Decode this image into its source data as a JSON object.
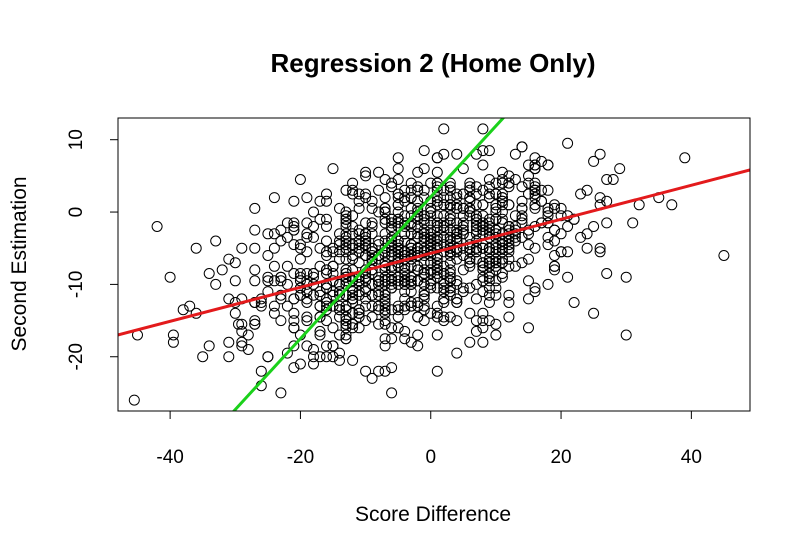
{
  "chart_data": {
    "type": "scatter",
    "title": "Regression 2 (Home Only)",
    "xlabel": "Score Difference",
    "ylabel": "Second Estimation",
    "xlim": [
      -48,
      49
    ],
    "ylim": [
      -27.5,
      13
    ],
    "xticks": [
      -40,
      -20,
      0,
      20,
      40
    ],
    "yticks": [
      -20,
      -10,
      0,
      10
    ],
    "grid": false,
    "lines": [
      {
        "color": "#e31a1c",
        "intercept": -5.7,
        "slope": 0.235
      },
      {
        "color": "#1bd11b",
        "intercept": 2.1,
        "slope": 0.98
      }
    ],
    "points_summary": {
      "count": 1100,
      "x_mean": -2,
      "x_sd": 12,
      "y_intercept": -5.7,
      "y_slope": 0.235,
      "y_noise_sd": 5.5
    },
    "points": [
      [
        -45.5,
        -26
      ],
      [
        -45,
        -17
      ],
      [
        -42,
        -2
      ],
      [
        -40,
        -9
      ],
      [
        -39.5,
        -17
      ],
      [
        -39.5,
        -18
      ],
      [
        -38,
        -13.5
      ],
      [
        -37,
        -13
      ],
      [
        -36,
        -14
      ],
      [
        -36,
        -5
      ],
      [
        -35,
        -20
      ],
      [
        -34,
        -8.5
      ],
      [
        -33,
        -10
      ],
      [
        -32,
        -8
      ],
      [
        -31,
        -18
      ],
      [
        -31,
        -6.5
      ],
      [
        -30,
        -14
      ],
      [
        -29.5,
        -15.5
      ],
      [
        -29,
        -12
      ],
      [
        -28,
        -19
      ],
      [
        -27,
        -2.5
      ],
      [
        -26,
        -24
      ],
      [
        -25,
        -20
      ],
      [
        -24,
        2
      ],
      [
        -24,
        -5
      ],
      [
        -23,
        -25
      ],
      [
        -22,
        -3.5
      ],
      [
        -21,
        -12
      ],
      [
        -20,
        4.5
      ],
      [
        -18,
        -21
      ],
      [
        -17,
        -1
      ],
      [
        -15,
        6
      ],
      [
        -14,
        -19.5
      ],
      [
        -12,
        2.5
      ],
      [
        -10,
        -22
      ],
      [
        -9,
        -23
      ],
      [
        -8,
        5.5
      ],
      [
        -6,
        -25
      ],
      [
        -5,
        7.5
      ],
      [
        -3,
        -18
      ],
      [
        -1,
        6
      ],
      [
        1,
        7.5
      ],
      [
        2,
        11.5
      ],
      [
        4,
        -19.5
      ],
      [
        6,
        -18
      ],
      [
        8,
        11.5
      ],
      [
        10,
        -17
      ],
      [
        12,
        4
      ],
      [
        14,
        9
      ],
      [
        16,
        -11
      ],
      [
        18,
        -10
      ],
      [
        19,
        -6
      ],
      [
        21,
        9.5
      ],
      [
        22,
        -1
      ],
      [
        24,
        -3
      ],
      [
        25,
        -2
      ],
      [
        26,
        -5
      ],
      [
        26,
        8
      ],
      [
        27,
        1.5
      ],
      [
        28,
        4.5
      ],
      [
        29,
        6
      ],
      [
        30,
        -17
      ],
      [
        30,
        -9
      ],
      [
        31,
        -1.5
      ],
      [
        32,
        1
      ],
      [
        35,
        2
      ],
      [
        37,
        1
      ],
      [
        39,
        7.5
      ],
      [
        45,
        -6
      ]
    ]
  }
}
